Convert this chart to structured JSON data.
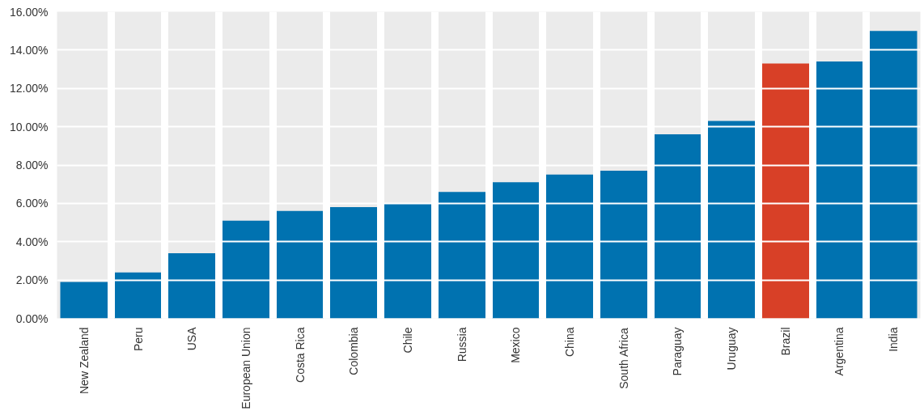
{
  "chart_data": {
    "type": "bar",
    "categories": [
      "New Zealand",
      "Peru",
      "USA",
      "European Union",
      "Costa Rica",
      "Colombia",
      "Chile",
      "Russia",
      "Mexico",
      "China",
      "South Africa",
      "Paraguay",
      "Uruguay",
      "Brazil",
      "Argentina",
      "India"
    ],
    "values": [
      1.9,
      2.4,
      3.4,
      5.1,
      5.6,
      5.8,
      6.0,
      6.6,
      7.1,
      7.5,
      7.7,
      9.6,
      10.3,
      13.3,
      13.4,
      15.0
    ],
    "colors": [
      "#0072b0",
      "#0072b0",
      "#0072b0",
      "#0072b0",
      "#0072b0",
      "#0072b0",
      "#0072b0",
      "#0072b0",
      "#0072b0",
      "#0072b0",
      "#0072b0",
      "#0072b0",
      "#0072b0",
      "#d84027",
      "#0072b0",
      "#0072b0"
    ],
    "ylim": [
      0,
      16
    ],
    "yticks": [
      {
        "value": 0,
        "label": "0.00%"
      },
      {
        "value": 2,
        "label": "2.00%"
      },
      {
        "value": 4,
        "label": "4.00%"
      },
      {
        "value": 6,
        "label": "6.00%"
      },
      {
        "value": 8,
        "label": "8.00%"
      },
      {
        "value": 10,
        "label": "10.00%"
      },
      {
        "value": 12,
        "label": "12.00%"
      },
      {
        "value": 14,
        "label": "14.00%"
      },
      {
        "value": 16,
        "label": "16.00%"
      }
    ],
    "grid": "y"
  }
}
